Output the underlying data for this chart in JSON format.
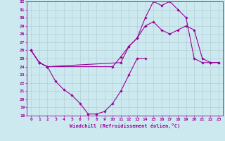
{
  "xlabel": "Windchill (Refroidissement éolien,°C)",
  "background_color": "#cce9f0",
  "grid_color": "#b0c8d0",
  "line_color": "#990099",
  "xlim": [
    -0.5,
    23.5
  ],
  "ylim": [
    18,
    32
  ],
  "xticks": [
    0,
    1,
    2,
    3,
    4,
    5,
    6,
    7,
    8,
    9,
    10,
    11,
    12,
    13,
    14,
    15,
    16,
    17,
    18,
    19,
    20,
    21,
    22,
    23
  ],
  "yticks": [
    18,
    19,
    20,
    21,
    22,
    23,
    24,
    25,
    26,
    27,
    28,
    29,
    30,
    31,
    32
  ],
  "curve1_x": [
    0,
    1,
    2,
    3,
    4,
    5,
    6,
    7,
    8,
    9,
    10,
    11,
    12,
    13,
    14
  ],
  "curve1_y": [
    26.0,
    24.5,
    24.0,
    22.2,
    21.2,
    20.5,
    19.5,
    18.2,
    18.2,
    18.5,
    19.5,
    21.0,
    23.0,
    25.0,
    25.0
  ],
  "curve2_x": [
    0,
    1,
    2,
    10,
    11,
    12,
    13,
    14,
    15,
    16,
    17,
    18,
    19,
    20,
    21,
    22,
    23
  ],
  "curve2_y": [
    26.0,
    24.5,
    24.0,
    24.0,
    25.2,
    26.5,
    27.5,
    29.0,
    29.5,
    28.5,
    28.0,
    28.5,
    29.0,
    28.5,
    25.0,
    24.5,
    24.5
  ],
  "curve3_x": [
    0,
    1,
    2,
    11,
    12,
    13,
    14,
    15,
    16,
    17,
    18,
    19,
    20,
    21,
    22,
    23
  ],
  "curve3_y": [
    26.0,
    24.5,
    24.0,
    24.5,
    26.5,
    27.5,
    30.0,
    32.0,
    31.5,
    32.0,
    31.0,
    30.0,
    25.0,
    24.5,
    24.5,
    24.5
  ]
}
